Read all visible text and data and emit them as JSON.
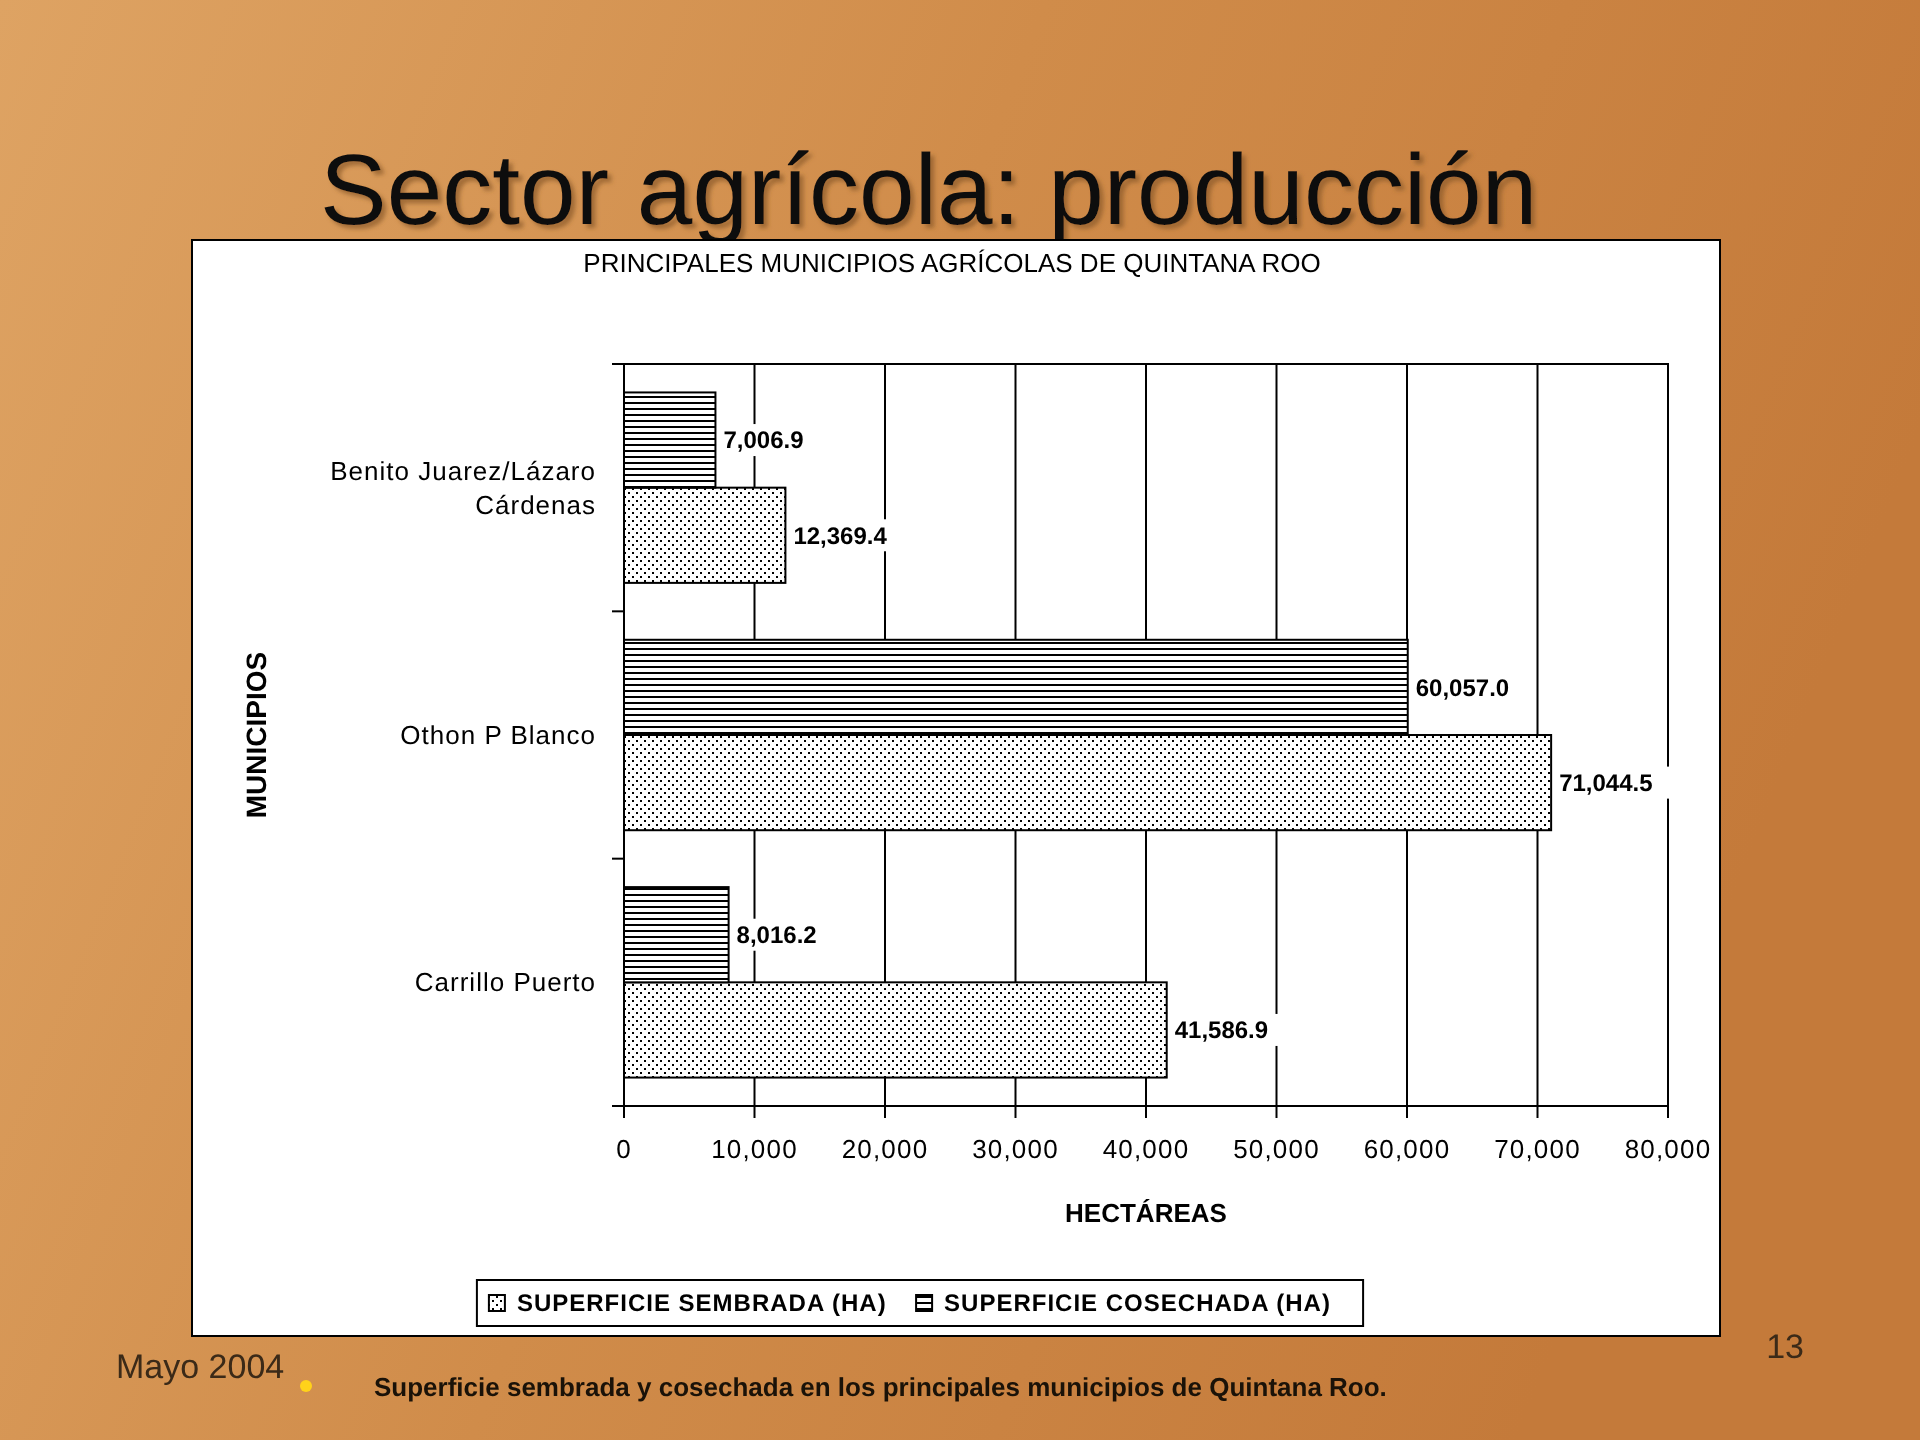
{
  "chart_data": {
    "type": "bar",
    "orientation": "horizontal",
    "title": "Sector agrícola: producción",
    "subtitle": "PRINCIPALES MUNICIPIOS AGRÍCOLAS DE QUINTANA ROO",
    "xlabel": "HECTÁREAS",
    "ylabel": "MUNICIPIOS",
    "categories": [
      "Benito Juarez/Lázaro Cárdenas",
      "Othon P Blanco",
      "Carrillo Puerto"
    ],
    "series": [
      {
        "name": "SUPERFICIE SEMBRADA (HA)",
        "color": "#000000",
        "values": [
          12369.4,
          71044.5,
          41586.9
        ],
        "value_labels": [
          "12,369.4",
          "71,044.5",
          "41,586.9"
        ]
      },
      {
        "name": "SUPERFICIE COSECHADA (HA)",
        "color": "#000000",
        "values": [
          7006.9,
          60057.0,
          8016.2
        ],
        "value_labels": [
          "7,006.9",
          "60,057.0",
          "8,016.2"
        ]
      }
    ],
    "xlim": [
      0,
      80000
    ],
    "xticks": [
      0,
      {
        "value": 10000,
        "label": "10,000"
      },
      {
        "value": 20000,
        "label": "20,000"
      },
      {
        "value": 30000,
        "label": "30,000"
      },
      {
        "value": 40000,
        "label": "40,000"
      },
      {
        "value": 50000,
        "label": "50,000"
      },
      {
        "value": 60000,
        "label": "60,000"
      },
      {
        "value": 70000,
        "label": "70,000"
      },
      {
        "value": 80000,
        "label": "80,000"
      }
    ],
    "grid": "x",
    "legend": "bottom",
    "annotations": [
      "Superficie sembrada y cosechada en los principales municipios de Quintana Roo.",
      "Mayo 2004",
      "13"
    ]
  }
}
